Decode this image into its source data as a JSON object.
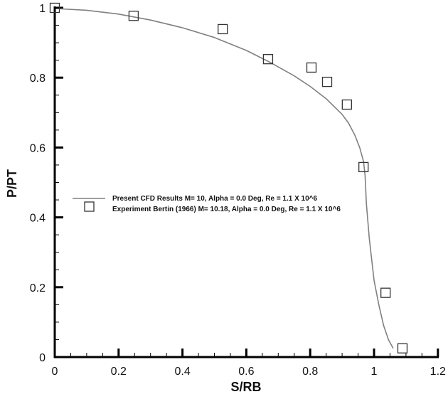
{
  "chart_data": {
    "type": "line",
    "title": "",
    "xlabel": "S/RB",
    "ylabel": "P/PT",
    "xlim": [
      0,
      1.2
    ],
    "ylim": [
      0,
      1
    ],
    "xticks": [
      0,
      0.2,
      0.4,
      0.6,
      0.8,
      1.0,
      1.2
    ],
    "xtick_labels": [
      "0",
      "0.2",
      "0.4",
      "0.6",
      "0.8",
      "1",
      "1.2"
    ],
    "yticks": [
      0,
      0.2,
      0.4,
      0.6,
      0.8,
      1.0
    ],
    "ytick_labels": [
      "0",
      "0.2",
      "0.4",
      "0.6",
      "0.8",
      "1"
    ],
    "x_minor_per_major": 4,
    "y_minor_per_major": 4,
    "grid": false,
    "legend_position": "inside-middle-left",
    "series": [
      {
        "name": "Present CFD Results M= 10,  Alpha = 0.0 Deg, Re = 1.1 X 10^6",
        "style": "line",
        "color": "#808080",
        "x": [
          0.02,
          0.1,
          0.2,
          0.3,
          0.4,
          0.5,
          0.6,
          0.67,
          0.75,
          0.8,
          0.85,
          0.9,
          0.92,
          0.94,
          0.955,
          0.967,
          0.972,
          0.976,
          0.985,
          1.0,
          1.015,
          1.03,
          1.045,
          1.06
        ],
        "y": [
          0.997,
          0.993,
          0.982,
          0.965,
          0.943,
          0.915,
          0.878,
          0.846,
          0.805,
          0.775,
          0.74,
          0.695,
          0.67,
          0.635,
          0.6,
          0.56,
          0.52,
          0.44,
          0.34,
          0.22,
          0.15,
          0.09,
          0.05,
          0.025
        ]
      },
      {
        "name": "Experiment  Bertin (1966) M= 10.18,  Alpha = 0.0 Deg, Re = 1.1 X 10^6",
        "style": "marker-square-open",
        "color": "#333333",
        "x": [
          0.0,
          0.247,
          0.526,
          0.668,
          0.804,
          0.853,
          0.915,
          0.967,
          1.036,
          1.089
        ],
        "y": [
          1.0,
          0.977,
          0.939,
          0.853,
          0.829,
          0.788,
          0.723,
          0.544,
          0.184,
          0.025
        ]
      }
    ]
  },
  "legend": {
    "entries": [
      {
        "label": "Present CFD Results M= 10,  Alpha = 0.0 Deg, Re = 1.1 X 10^6"
      },
      {
        "label": "Experiment  Bertin (1966) M= 10.18,  Alpha = 0.0 Deg, Re = 1.1 X 10^6"
      }
    ]
  },
  "axes": {
    "x_title": "S/RB",
    "y_title": "P/PT"
  }
}
